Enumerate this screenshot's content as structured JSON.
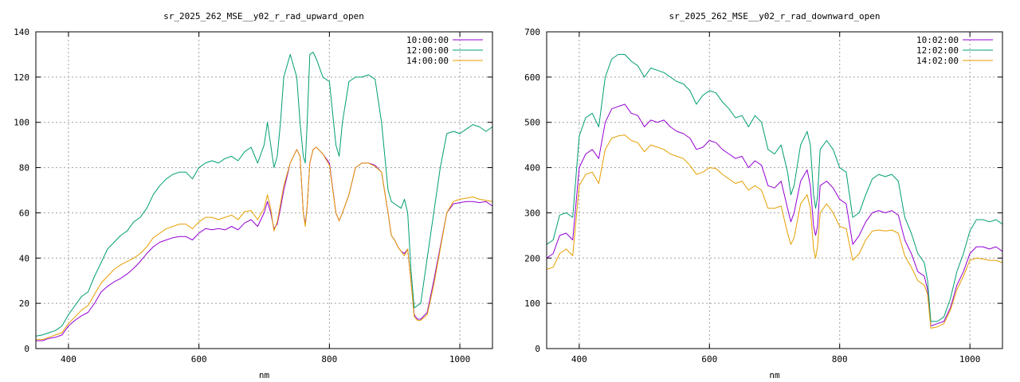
{
  "chart_data": [
    {
      "type": "line",
      "title": "sr_2025_262_MSE__y02_r_rad_upward_open",
      "xlabel": "nm",
      "ylabel": "",
      "xlim": [
        350,
        1050
      ],
      "ylim": [
        0,
        140
      ],
      "xticks": [
        400,
        600,
        800,
        1000
      ],
      "yticks": [
        0,
        20,
        40,
        60,
        80,
        100,
        120,
        140
      ],
      "grid": true,
      "legend_position": "top-right",
      "x": [
        350,
        360,
        370,
        380,
        390,
        400,
        410,
        420,
        430,
        440,
        450,
        460,
        470,
        480,
        490,
        500,
        510,
        520,
        530,
        540,
        550,
        560,
        570,
        580,
        590,
        600,
        610,
        620,
        630,
        640,
        650,
        660,
        670,
        680,
        690,
        700,
        705,
        710,
        715,
        720,
        725,
        730,
        740,
        750,
        755,
        760,
        763,
        766,
        770,
        775,
        780,
        790,
        800,
        810,
        815,
        820,
        830,
        840,
        850,
        860,
        870,
        880,
        890,
        895,
        900,
        905,
        910,
        915,
        920,
        925,
        930,
        935,
        940,
        950,
        960,
        970,
        980,
        990,
        1000,
        1010,
        1020,
        1030,
        1040,
        1050
      ],
      "series": [
        {
          "name": "10:00:00",
          "color": "#9400d3",
          "values": [
            3.5,
            3.5,
            4.5,
            5,
            6,
            10,
            12.5,
            14.5,
            16,
            20,
            25,
            27.5,
            29.5,
            31,
            33,
            35.5,
            38.5,
            42,
            45,
            47,
            48,
            49,
            49.5,
            49.5,
            48,
            51,
            53,
            52.5,
            53,
            52.5,
            54,
            52.5,
            55.5,
            57,
            54,
            60,
            65,
            60,
            53,
            55,
            62,
            70,
            82,
            88,
            85,
            60,
            55,
            63,
            82,
            88,
            89,
            86,
            82,
            60,
            56.5,
            60,
            68,
            80,
            82,
            82,
            81,
            78,
            60,
            50,
            48,
            45,
            43,
            42,
            44,
            30,
            15,
            13,
            13,
            16,
            30,
            45,
            60,
            64,
            64.5,
            65,
            65,
            64.5,
            65,
            63
          ]
        },
        {
          "name": "12:00:00",
          "color": "#009e73",
          "values": [
            5.5,
            6,
            7,
            8,
            10,
            15,
            19,
            23,
            25,
            32,
            38,
            44,
            47,
            50,
            52,
            56,
            58,
            62,
            68,
            72,
            75,
            77,
            78,
            78,
            75,
            80,
            82,
            83,
            82,
            84,
            85,
            83,
            87,
            89,
            82,
            90,
            100,
            90,
            80,
            85,
            100,
            120,
            130,
            120,
            100,
            85,
            82,
            100,
            130,
            131,
            128,
            120,
            118,
            90,
            85,
            100,
            118,
            120,
            120,
            121,
            119,
            100,
            70,
            65,
            64,
            63,
            62,
            66,
            60,
            35,
            18,
            19,
            20,
            40,
            60,
            80,
            95,
            96,
            95,
            97,
            99,
            98,
            96,
            98
          ]
        },
        {
          "name": "14:00:00",
          "color": "#e69f00",
          "values": [
            4,
            4,
            5,
            6,
            7,
            11,
            14,
            17,
            19,
            24,
            29,
            32,
            35,
            37,
            38.5,
            40,
            42,
            45,
            49,
            51,
            53,
            54,
            55,
            55,
            53,
            56,
            58,
            58,
            57,
            58,
            59,
            57,
            60.5,
            61,
            57,
            62,
            68,
            62,
            52,
            56,
            64,
            72,
            82,
            88,
            85,
            60,
            54,
            63,
            82,
            88,
            89,
            86,
            81,
            60,
            56.5,
            60,
            68,
            80,
            82,
            82,
            80.5,
            78,
            60,
            50,
            48,
            45,
            43,
            41,
            44,
            30,
            14,
            12.5,
            12.5,
            15,
            28,
            44,
            60,
            65,
            66,
            66.5,
            67,
            66,
            65.5,
            65
          ]
        }
      ]
    },
    {
      "type": "line",
      "title": "sr_2025_262_MSE__y02_r_rad_downward_open",
      "xlabel": "nm",
      "ylabel": "",
      "xlim": [
        350,
        1050
      ],
      "ylim": [
        0,
        700
      ],
      "xticks": [
        400,
        600,
        800,
        1000
      ],
      "yticks": [
        0,
        100,
        200,
        300,
        400,
        500,
        600,
        700
      ],
      "grid": true,
      "legend_position": "top-right",
      "x": [
        350,
        360,
        370,
        380,
        390,
        400,
        410,
        420,
        430,
        440,
        450,
        460,
        470,
        480,
        490,
        500,
        510,
        520,
        530,
        540,
        550,
        560,
        570,
        580,
        590,
        600,
        610,
        620,
        630,
        640,
        650,
        660,
        670,
        680,
        690,
        700,
        710,
        720,
        725,
        730,
        740,
        750,
        755,
        760,
        763,
        766,
        770,
        780,
        790,
        800,
        810,
        820,
        830,
        840,
        850,
        860,
        870,
        880,
        890,
        900,
        910,
        920,
        930,
        935,
        940,
        950,
        960,
        970,
        980,
        990,
        1000,
        1010,
        1020,
        1030,
        1040,
        1050
      ],
      "series": [
        {
          "name": "10:02:00",
          "color": "#9400d3",
          "values": [
            200,
            210,
            250,
            255,
            240,
            400,
            430,
            440,
            420,
            500,
            530,
            535,
            540,
            520,
            515,
            490,
            505,
            500,
            505,
            490,
            480,
            475,
            465,
            440,
            445,
            460,
            455,
            440,
            430,
            420,
            425,
            400,
            415,
            405,
            360,
            355,
            370,
            310,
            280,
            300,
            370,
            395,
            360,
            270,
            250,
            270,
            360,
            370,
            355,
            330,
            320,
            230,
            250,
            280,
            300,
            305,
            300,
            305,
            295,
            240,
            210,
            170,
            160,
            130,
            50,
            55,
            60,
            90,
            140,
            170,
            210,
            225,
            225,
            220,
            225,
            215
          ]
        },
        {
          "name": "12:02:00",
          "color": "#009e73",
          "values": [
            230,
            240,
            295,
            300,
            290,
            470,
            510,
            520,
            490,
            600,
            640,
            650,
            650,
            635,
            625,
            600,
            620,
            615,
            610,
            600,
            590,
            585,
            570,
            540,
            560,
            570,
            565,
            545,
            530,
            510,
            515,
            490,
            515,
            500,
            440,
            430,
            450,
            390,
            340,
            360,
            450,
            480,
            450,
            340,
            310,
            335,
            440,
            460,
            440,
            400,
            390,
            290,
            300,
            340,
            375,
            385,
            380,
            385,
            370,
            290,
            255,
            210,
            190,
            150,
            60,
            60,
            70,
            110,
            170,
            210,
            260,
            285,
            285,
            280,
            285,
            275
          ]
        },
        {
          "name": "14:02:00",
          "color": "#e69f00",
          "values": [
            175,
            180,
            210,
            220,
            205,
            360,
            385,
            390,
            365,
            440,
            465,
            470,
            472,
            460,
            455,
            435,
            450,
            445,
            440,
            430,
            425,
            420,
            405,
            385,
            390,
            400,
            398,
            385,
            375,
            365,
            370,
            350,
            360,
            350,
            310,
            310,
            315,
            255,
            230,
            245,
            320,
            340,
            310,
            220,
            200,
            225,
            300,
            320,
            300,
            270,
            265,
            195,
            210,
            240,
            260,
            262,
            260,
            262,
            255,
            205,
            180,
            150,
            140,
            120,
            45,
            48,
            55,
            85,
            130,
            160,
            195,
            200,
            198,
            195,
            195,
            190
          ]
        }
      ]
    }
  ]
}
